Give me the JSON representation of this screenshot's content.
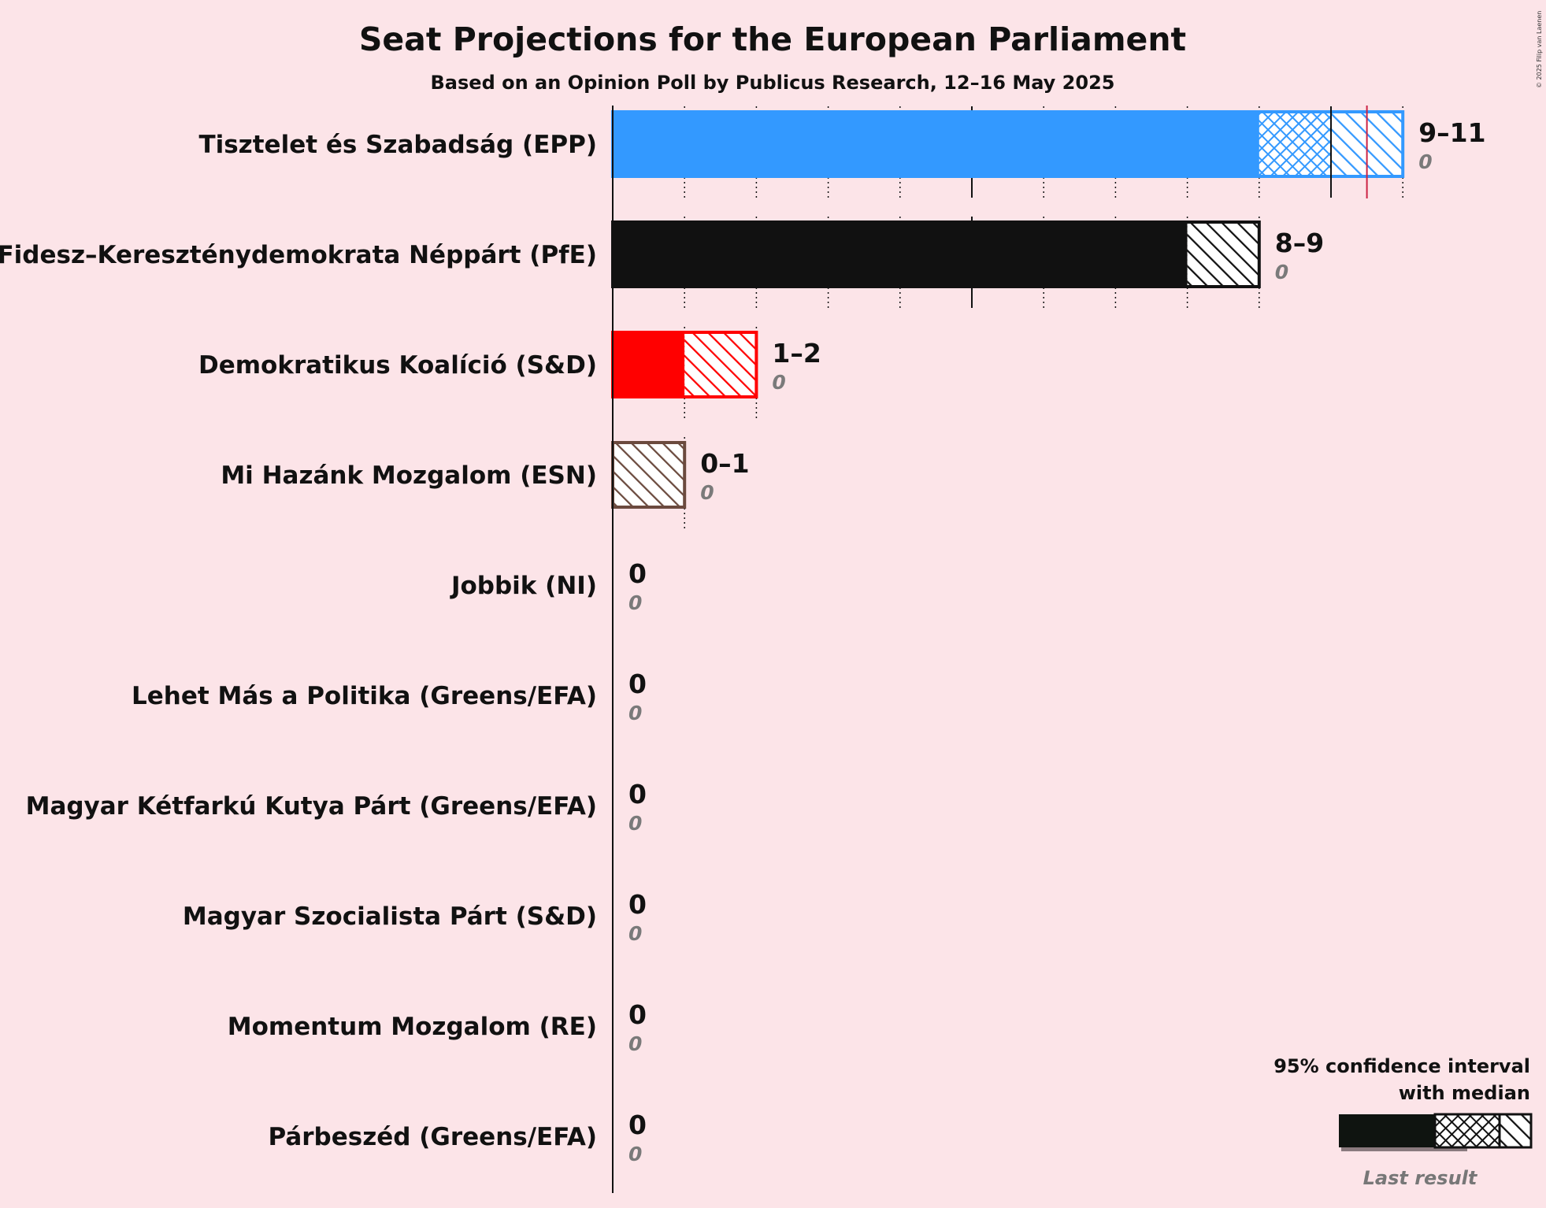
{
  "title": "Seat Projections for the European Parliament",
  "subtitle": "Based on an Opinion Poll by Publicus Research, 12–16 May 2025",
  "copyright": "© 2025 Filip van Laenen",
  "legend": {
    "title_line1": "95% confidence interval",
    "title_line2": "with median",
    "last_result": "Last result"
  },
  "chart_data": {
    "type": "bar",
    "orientation": "horizontal",
    "title": "Seat Projections for the European Parliament",
    "subtitle": "Based on an Opinion Poll by Publicus Research, 12–16 May 2025",
    "xlim": [
      0,
      11
    ],
    "majority_line": 10.5,
    "series": [
      {
        "party": "Tisztelet és Szabadság (EPP)",
        "range_label": "9–11",
        "last_label": "0",
        "low": 9,
        "median": 10,
        "high": 11,
        "last": 0,
        "color": "#3399ff"
      },
      {
        "party": "Fidesz–Kereszténydemokrata Néppárt (PfE)",
        "range_label": "8–9",
        "last_label": "0",
        "low": 8,
        "median": 8,
        "high": 9,
        "last": 0,
        "color": "#111111"
      },
      {
        "party": "Demokratikus Koalíció (S&D)",
        "range_label": "1–2",
        "last_label": "0",
        "low": 1,
        "median": 1,
        "high": 2,
        "last": 0,
        "color": "#ff0000"
      },
      {
        "party": "Mi Hazánk Mozgalom (ESN)",
        "range_label": "0–1",
        "last_label": "0",
        "low": 0,
        "median": 0,
        "high": 1,
        "last": 0,
        "color": "#6b4a3e"
      },
      {
        "party": "Jobbik (NI)",
        "range_label": "0",
        "last_label": "0",
        "low": 0,
        "median": 0,
        "high": 0,
        "last": 0,
        "color": "#111111"
      },
      {
        "party": "Lehet Más a Politika (Greens/EFA)",
        "range_label": "0",
        "last_label": "0",
        "low": 0,
        "median": 0,
        "high": 0,
        "last": 0,
        "color": "#111111"
      },
      {
        "party": "Magyar Kétfarkú Kutya Párt (Greens/EFA)",
        "range_label": "0",
        "last_label": "0",
        "low": 0,
        "median": 0,
        "high": 0,
        "last": 0,
        "color": "#111111"
      },
      {
        "party": "Magyar Szocialista Párt (S&D)",
        "range_label": "0",
        "last_label": "0",
        "low": 0,
        "median": 0,
        "high": 0,
        "last": 0,
        "color": "#111111"
      },
      {
        "party": "Momentum Mozgalom (RE)",
        "range_label": "0",
        "last_label": "0",
        "low": 0,
        "median": 0,
        "high": 0,
        "last": 0,
        "color": "#111111"
      },
      {
        "party": "Párbeszéd (Greens/EFA)",
        "range_label": "0",
        "last_label": "0",
        "low": 0,
        "median": 0,
        "high": 0,
        "last": 0,
        "color": "#111111"
      }
    ]
  }
}
